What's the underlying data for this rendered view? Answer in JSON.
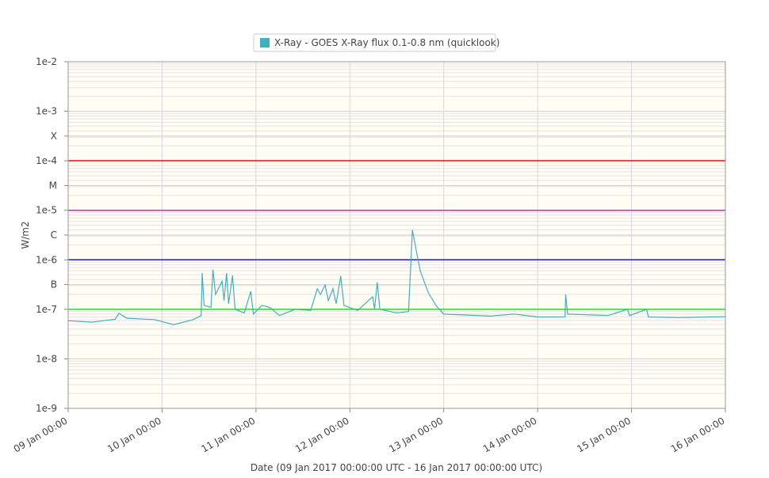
{
  "chart_data": {
    "type": "line",
    "legend": "X-Ray - GOES X-Ray flux 0.1-0.8 nm (quicklook)",
    "ylabel": "W/m2",
    "xlabel": "Date (09 Jan 2017 00:00:00 UTC - 16 Jan 2017 00:00:00 UTC)",
    "log_y": true,
    "grid": true,
    "ylim": [
      1e-09,
      0.01
    ],
    "yticks": [
      {
        "value": 0.01,
        "label": "1e-2"
      },
      {
        "value": 0.001,
        "label": "1e-3"
      },
      {
        "value": 0.000316,
        "label": "X"
      },
      {
        "value": 0.0001,
        "label": "1e-4"
      },
      {
        "value": 3.16e-05,
        "label": "M"
      },
      {
        "value": 1e-05,
        "label": "1e-5"
      },
      {
        "value": 3.16e-06,
        "label": "C"
      },
      {
        "value": 1e-06,
        "label": "1e-6"
      },
      {
        "value": 3.16e-07,
        "label": "B"
      },
      {
        "value": 1e-07,
        "label": "1e-7"
      },
      {
        "value": 1e-08,
        "label": "1e-8"
      },
      {
        "value": 1e-09,
        "label": "1e-9"
      }
    ],
    "thresholds": [
      {
        "value": 0.0001,
        "color": "#ff0000"
      },
      {
        "value": 1e-05,
        "color": "#cc22cc"
      },
      {
        "value": 1e-06,
        "color": "#1a1acc"
      },
      {
        "value": 1e-07,
        "color": "#22dd22"
      }
    ],
    "xlim": [
      "09 Jan 00:00",
      "16 Jan 00:00"
    ],
    "xticks": [
      "09 Jan 00:00",
      "10 Jan 00:00",
      "11 Jan 00:00",
      "12 Jan 00:00",
      "13 Jan 00:00",
      "14 Jan 00:00",
      "15 Jan 00:00",
      "16 Jan 00:00"
    ],
    "x": [
      "09 Jan 00:00",
      "09 Jan 06:00",
      "09 Jan 12:00",
      "09 Jan 13:00",
      "09 Jan 15:00",
      "09 Jan 22:00",
      "10 Jan 03:00",
      "10 Jan 08:00",
      "10 Jan 10:00",
      "10 Jan 10:15",
      "10 Jan 10:45",
      "10 Jan 12:30",
      "10 Jan 13:00",
      "10 Jan 13:40",
      "10 Jan 15:20",
      "10 Jan 15:50",
      "10 Jan 16:30",
      "10 Jan 17:00",
      "10 Jan 18:00",
      "10 Jan 18:40",
      "10 Jan 21:00",
      "10 Jan 22:40",
      "10 Jan 23:20",
      "11 Jan 01:30",
      "11 Jan 03:30",
      "11 Jan 06:00",
      "11 Jan 10:00",
      "11 Jan 14:00",
      "11 Jan 15:40",
      "11 Jan 16:30",
      "11 Jan 17:40",
      "11 Jan 18:30",
      "11 Jan 19:40",
      "11 Jan 20:30",
      "11 Jan 21:40",
      "11 Jan 22:30",
      "12 Jan 02:00",
      "12 Jan 05:50",
      "12 Jan 06:20",
      "12 Jan 07:00",
      "12 Jan 07:40",
      "12 Jan 12:00",
      "12 Jan 15:00",
      "12 Jan 16:00",
      "12 Jan 17:00",
      "12 Jan 18:00",
      "12 Jan 20:00",
      "12 Jan 22:00",
      "13 Jan 00:00",
      "13 Jan 12:00",
      "13 Jan 18:00",
      "14 Jan 00:00",
      "14 Jan 07:00",
      "14 Jan 07:10",
      "14 Jan 07:40",
      "14 Jan 18:00",
      "14 Jan 23:00",
      "14 Jan 23:30",
      "15 Jan 03:50",
      "15 Jan 04:20",
      "15 Jan 12:00",
      "15 Jan 20:00",
      "16 Jan 00:00"
    ],
    "series": [
      {
        "name": "X-Ray - GOES X-Ray flux 0.1-0.8 nm (quicklook)",
        "color": "#45aebb",
        "values": [
          5.9e-08,
          5.5e-08,
          6.3e-08,
          8.3e-08,
          6.6e-08,
          6.2e-08,
          4.9e-08,
          6.2e-08,
          7.5e-08,
          5.4e-07,
          1.2e-07,
          1.1e-07,
          6.3e-07,
          2e-07,
          3.7e-07,
          1.5e-07,
          5.4e-07,
          1.3e-07,
          4.8e-07,
          1e-07,
          8.5e-08,
          2.3e-07,
          8e-08,
          1.2e-07,
          1.1e-07,
          7.5e-08,
          1e-07,
          9.5e-08,
          2.6e-07,
          2e-07,
          3.1e-07,
          1.5e-07,
          2.6e-07,
          1.3e-07,
          4.7e-07,
          1.2e-07,
          9.5e-08,
          1.8e-07,
          1e-07,
          3.5e-07,
          1e-07,
          8.5e-08,
          9e-08,
          4e-06,
          1.5e-06,
          6e-07,
          2.2e-07,
          1.2e-07,
          8e-08,
          7.3e-08,
          8e-08,
          7e-08,
          7e-08,
          2e-07,
          8e-08,
          7.5e-08,
          1e-07,
          7.5e-08,
          1e-07,
          7e-08,
          6.8e-08,
          7e-08,
          7.1e-08
        ]
      }
    ]
  }
}
